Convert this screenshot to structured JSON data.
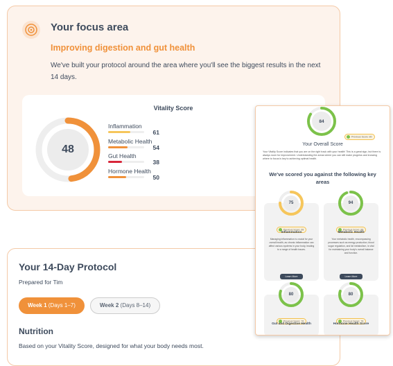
{
  "focus": {
    "title": "Your focus area",
    "subtitle": "Improving digestion and gut health",
    "description": "We've built your protocol around the area where you'll see the biggest results in the next 14 days."
  },
  "vitality": {
    "title": "Vitality Score",
    "score": 48,
    "metrics": [
      {
        "name": "Inflammation",
        "value": 61,
        "color": "#f6c65b"
      },
      {
        "name": "Metabolic Health",
        "value": 54,
        "color": "#f0913a"
      },
      {
        "name": "Gut Health",
        "value": 38,
        "color": "#d8263a"
      },
      {
        "name": "Hormone Health",
        "value": 50,
        "color": "#f0913a"
      }
    ]
  },
  "report": {
    "score": 84,
    "previous": "Previous Score: 80",
    "title": "Your Overall Score",
    "description": "Your Vitality Score indicates that you are on the right track with your health! This is a great sign, but there is always room for improvement. Understanding the areas where you can still make progress and knowing where to focus is key to achieving optimal health.",
    "heading": "We've scored you against the following key areas",
    "cards": [
      {
        "score": 75,
        "color": "#f6c65b",
        "previous": "Previous Score: 68",
        "name": "Inflammation",
        "description": "Managing inflammation is crucial for your overall health, as chronic inflammation can affect various systems in your body, leading to a range of health issues.",
        "button": "Learn More"
      },
      {
        "score": 94,
        "color": "#7cc24a",
        "previous": "Previous Score: 88",
        "name": "Metabolic Health",
        "description": "Your metabolic health, encompassing processes such as energy production, blood sugar regulation, and fat metabolism, is vital for maintaining your body's overall balance and function.",
        "button": "Learn More"
      },
      {
        "score": 80,
        "color": "#7cc24a",
        "previous": "Previous Score: 76",
        "name": "Gut and Digestive Health"
      },
      {
        "score": 80,
        "color": "#7cc24a",
        "previous": "Previous Score: 78",
        "name": "Hormone Health Score"
      }
    ]
  },
  "protocol": {
    "title": "Your 14-Day Protocol",
    "prepared": "Prepared for Tim",
    "tabs": [
      {
        "label": "Week 1",
        "range": "(Days 1–7)"
      },
      {
        "label": "Week 2",
        "range": "(Days 8–14)"
      }
    ],
    "section": "Nutrition",
    "section_text": "Based on your Vitality Score, designed for what your body needs most."
  }
}
